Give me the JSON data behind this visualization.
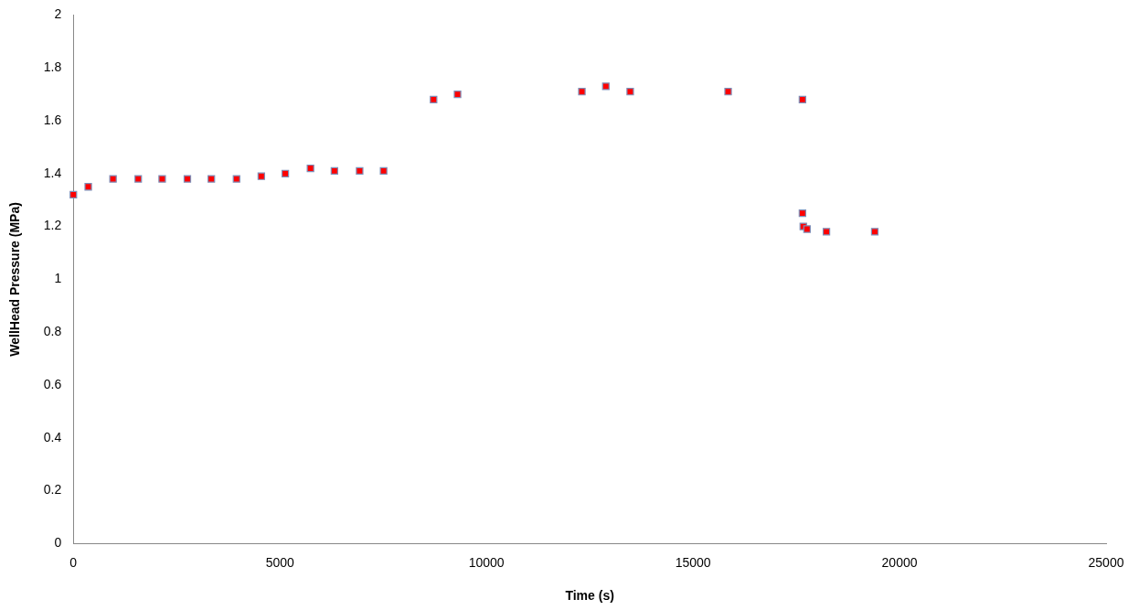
{
  "chart_data": {
    "type": "scatter",
    "xlabel": "Time (s)",
    "ylabel": "WellHead Pressure (MPa)",
    "x": [
      0,
      360,
      960,
      1570,
      2150,
      2760,
      3340,
      3950,
      4550,
      5130,
      5740,
      6320,
      6930,
      7510,
      8720,
      9300,
      12310,
      12890,
      13480,
      15850,
      17650,
      17650,
      17670,
      17760,
      18230,
      19400
    ],
    "series": [
      {
        "color": "#ff0000",
        "values": [
          1.32,
          1.35,
          1.38,
          1.38,
          1.38,
          1.38,
          1.38,
          1.38,
          1.39,
          1.4,
          1.42,
          1.41,
          1.41,
          1.41,
          1.68,
          1.7,
          1.71,
          1.73,
          1.71,
          1.71,
          1.68,
          1.25,
          1.2,
          1.19,
          1.18,
          1.18
        ]
      }
    ],
    "xlim": [
      0,
      25000
    ],
    "xticks": [
      0,
      5000,
      10000,
      15000,
      20000,
      25000
    ],
    "ylim": [
      0,
      2
    ],
    "yticks": [
      0,
      0.2,
      0.4,
      0.6,
      0.8,
      1,
      1.2,
      1.4,
      1.6,
      1.8,
      2
    ],
    "grid": false,
    "legend": false,
    "marker": "square"
  }
}
